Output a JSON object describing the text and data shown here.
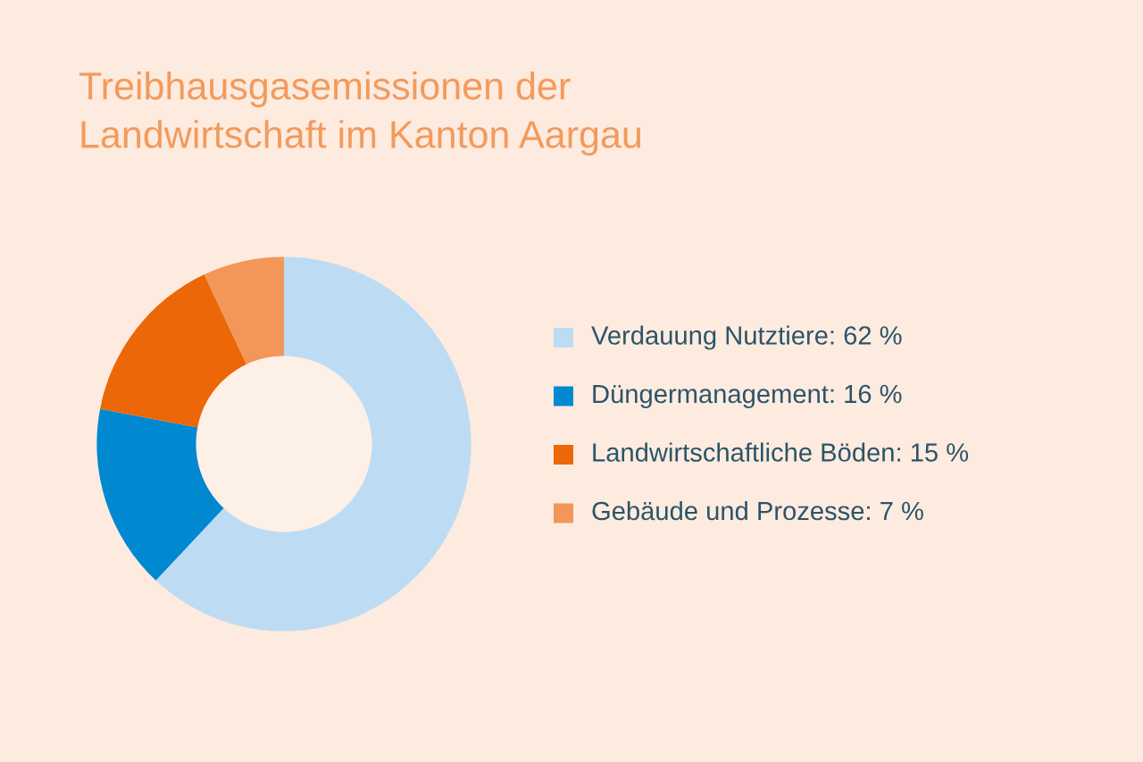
{
  "chart_data": {
    "type": "donut",
    "title": "Treibhausgasemissionen der\nLandwirtschaft im Kanton Aargau",
    "categories": [
      "Verdauung Nutztiere",
      "Düngermanagement",
      "Landwirtschaftliche Böden",
      "Gebäude und Prozesse"
    ],
    "values": [
      62,
      16,
      15,
      7
    ],
    "value_labels": [
      "62 %",
      "16 %",
      "15 %",
      "7 %"
    ],
    "colors": [
      "#bddcf4",
      "#0088d1",
      "#ec6707",
      "#f39659"
    ],
    "legend": "right"
  }
}
